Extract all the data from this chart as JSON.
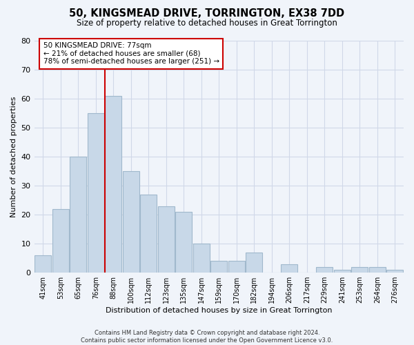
{
  "title": "50, KINGSMEAD DRIVE, TORRINGTON, EX38 7DD",
  "subtitle": "Size of property relative to detached houses in Great Torrington",
  "xlabel": "Distribution of detached houses by size in Great Torrington",
  "ylabel": "Number of detached properties",
  "categories": [
    "41sqm",
    "53sqm",
    "65sqm",
    "76sqm",
    "88sqm",
    "100sqm",
    "112sqm",
    "123sqm",
    "135sqm",
    "147sqm",
    "159sqm",
    "170sqm",
    "182sqm",
    "194sqm",
    "206sqm",
    "217sqm",
    "229sqm",
    "241sqm",
    "253sqm",
    "264sqm",
    "276sqm"
  ],
  "values": [
    6,
    22,
    40,
    55,
    61,
    35,
    27,
    23,
    21,
    10,
    4,
    4,
    7,
    0,
    3,
    0,
    2,
    1,
    2,
    2,
    1
  ],
  "bar_color": "#c8d8e8",
  "bar_edge_color": "#a0b8cc",
  "vline_x_index": 3.5,
  "vline_color": "#cc0000",
  "annotation_text": "50 KINGSMEAD DRIVE: 77sqm\n← 21% of detached houses are smaller (68)\n78% of semi-detached houses are larger (251) →",
  "annotation_box_color": "white",
  "annotation_box_edge": "#cc0000",
  "ylim": [
    0,
    80
  ],
  "yticks": [
    0,
    10,
    20,
    30,
    40,
    50,
    60,
    70,
    80
  ],
  "grid_color": "#d0d8e8",
  "background_color": "#f0f4fa",
  "footer_line1": "Contains HM Land Registry data © Crown copyright and database right 2024.",
  "footer_line2": "Contains public sector information licensed under the Open Government Licence v3.0."
}
